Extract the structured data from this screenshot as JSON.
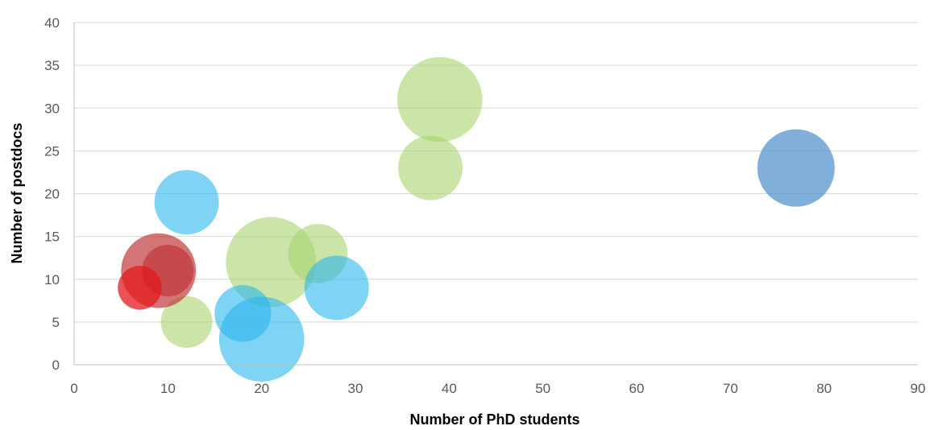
{
  "chart_data": {
    "type": "bubble",
    "xlabel": "Number of PhD students",
    "ylabel": "Number of postdocs",
    "xlim": [
      0,
      90
    ],
    "ylim": [
      0,
      40
    ],
    "xticks": [
      0,
      10,
      20,
      30,
      40,
      50,
      60,
      70,
      80,
      90
    ],
    "yticks": [
      0,
      5,
      10,
      15,
      20,
      25,
      30,
      35,
      40
    ],
    "grid": "horizontal",
    "legend": "none",
    "colors": {
      "green": "#a9d46f",
      "lightblue": "#29b5ed",
      "red": "#e31a1c",
      "darkred": "#c0393b",
      "steelblue": "#4a8fcb",
      "grid": "#d9d9d9",
      "axis": "#bfbfbf"
    },
    "series": [
      {
        "color": "green",
        "opacity": 0.6,
        "points": [
          {
            "x": 39,
            "y": 31,
            "size": 3.3
          },
          {
            "x": 38,
            "y": 23,
            "size": 2.5
          },
          {
            "x": 21,
            "y": 12,
            "size": 3.5
          },
          {
            "x": 26,
            "y": 13,
            "size": 2.3
          },
          {
            "x": 12,
            "y": 5,
            "size": 2.0
          }
        ]
      },
      {
        "color": "lightblue",
        "opacity": 0.6,
        "points": [
          {
            "x": 12,
            "y": 19,
            "size": 2.5
          },
          {
            "x": 28,
            "y": 9,
            "size": 2.5
          },
          {
            "x": 18,
            "y": 6,
            "size": 2.2
          },
          {
            "x": 20,
            "y": 3,
            "size": 3.3
          }
        ]
      },
      {
        "color": "darkred",
        "opacity": 0.7,
        "points": [
          {
            "x": 9,
            "y": 11,
            "size": 2.9
          },
          {
            "x": 10,
            "y": 11,
            "size": 2.0
          }
        ]
      },
      {
        "color": "red",
        "opacity": 0.75,
        "points": [
          {
            "x": 7,
            "y": 9,
            "size": 1.7
          }
        ]
      },
      {
        "color": "steelblue",
        "opacity": 0.7,
        "points": [
          {
            "x": 77,
            "y": 23,
            "size": 3.0
          }
        ]
      }
    ]
  }
}
